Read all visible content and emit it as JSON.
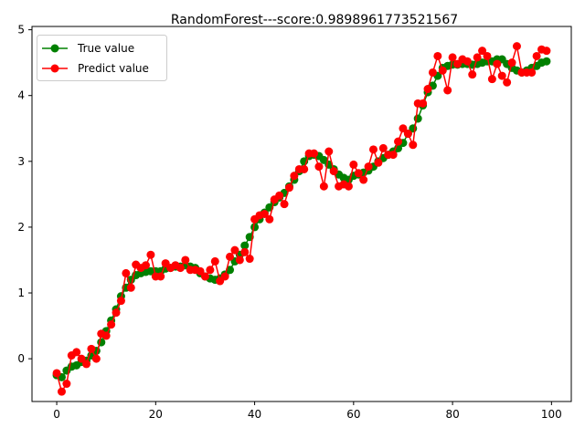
{
  "chart_data": {
    "type": "line",
    "title": "RandomForest---score:0.9898961773521567",
    "xlabel": "",
    "ylabel": "",
    "xlim": [
      -5,
      104
    ],
    "ylim": [
      -0.65,
      5.05
    ],
    "xticks": [
      0,
      20,
      40,
      60,
      80,
      100
    ],
    "yticks": [
      0,
      1,
      2,
      3,
      4,
      5
    ],
    "grid": false,
    "legend_position": "top-left",
    "x": [
      0,
      1,
      2,
      3,
      4,
      5,
      6,
      7,
      8,
      9,
      10,
      11,
      12,
      13,
      14,
      15,
      16,
      17,
      18,
      19,
      20,
      21,
      22,
      23,
      24,
      25,
      26,
      27,
      28,
      29,
      30,
      31,
      32,
      33,
      34,
      35,
      36,
      37,
      38,
      39,
      40,
      41,
      42,
      43,
      44,
      45,
      46,
      47,
      48,
      49,
      50,
      51,
      52,
      53,
      54,
      55,
      56,
      57,
      58,
      59,
      60,
      61,
      62,
      63,
      64,
      65,
      66,
      67,
      68,
      69,
      70,
      71,
      72,
      73,
      74,
      75,
      76,
      77,
      78,
      79,
      80,
      81,
      82,
      83,
      84,
      85,
      86,
      87,
      88,
      89,
      90,
      91,
      92,
      93,
      94,
      95,
      96,
      97,
      98,
      99
    ],
    "series": [
      {
        "name": "True value",
        "color": "#008000",
        "marker": "circle",
        "values": [
          -0.25,
          -0.28,
          -0.18,
          -0.12,
          -0.1,
          -0.05,
          -0.03,
          0.05,
          0.12,
          0.25,
          0.42,
          0.58,
          0.75,
          0.95,
          1.08,
          1.2,
          1.27,
          1.3,
          1.32,
          1.33,
          1.33,
          1.33,
          1.37,
          1.38,
          1.4,
          1.4,
          1.42,
          1.4,
          1.38,
          1.3,
          1.25,
          1.22,
          1.2,
          1.22,
          1.28,
          1.35,
          1.48,
          1.58,
          1.72,
          1.85,
          2.0,
          2.12,
          2.22,
          2.3,
          2.38,
          2.45,
          2.52,
          2.62,
          2.72,
          2.85,
          3.0,
          3.08,
          3.1,
          3.08,
          3.02,
          2.95,
          2.88,
          2.8,
          2.75,
          2.72,
          2.78,
          2.8,
          2.83,
          2.86,
          2.92,
          3.0,
          3.05,
          3.1,
          3.15,
          3.2,
          3.28,
          3.42,
          3.5,
          3.65,
          3.85,
          4.05,
          4.15,
          4.3,
          4.42,
          4.45,
          4.47,
          4.47,
          4.48,
          4.48,
          4.47,
          4.48,
          4.5,
          4.52,
          4.52,
          4.55,
          4.55,
          4.48,
          4.42,
          4.38,
          4.35,
          4.38,
          4.42,
          4.45,
          4.5,
          4.52
        ]
      },
      {
        "name": "Predict value",
        "color": "#ff0000",
        "marker": "circle",
        "values": [
          -0.22,
          -0.5,
          -0.38,
          0.05,
          0.1,
          0.0,
          -0.08,
          0.15,
          0.0,
          0.38,
          0.35,
          0.52,
          0.7,
          0.88,
          1.3,
          1.08,
          1.43,
          1.38,
          1.42,
          1.58,
          1.25,
          1.25,
          1.45,
          1.38,
          1.42,
          1.38,
          1.5,
          1.35,
          1.35,
          1.33,
          1.25,
          1.35,
          1.48,
          1.18,
          1.25,
          1.55,
          1.65,
          1.5,
          1.62,
          1.52,
          2.12,
          2.18,
          2.2,
          2.12,
          2.42,
          2.48,
          2.35,
          2.6,
          2.78,
          2.88,
          2.88,
          3.12,
          3.12,
          2.92,
          2.62,
          3.15,
          2.85,
          2.62,
          2.65,
          2.62,
          2.95,
          2.82,
          2.72,
          2.92,
          3.18,
          2.98,
          3.2,
          3.1,
          3.1,
          3.3,
          3.5,
          3.42,
          3.25,
          3.88,
          3.88,
          4.1,
          4.35,
          4.6,
          4.38,
          4.08,
          4.58,
          4.48,
          4.55,
          4.52,
          4.32,
          4.58,
          4.68,
          4.6,
          4.25,
          4.48,
          4.3,
          4.2,
          4.5,
          4.75,
          4.35,
          4.35,
          4.35,
          4.6,
          4.7,
          4.68
        ]
      }
    ]
  }
}
